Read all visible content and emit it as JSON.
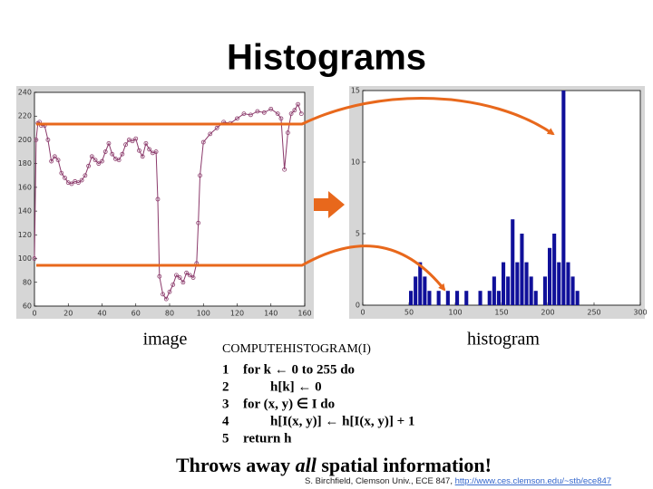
{
  "title": "Histograms",
  "captions": {
    "left": "image",
    "right": "histogram"
  },
  "algorithm": {
    "name": "COMPUTEHISTOGRAM(I)",
    "lines": [
      {
        "number": "1",
        "text": "for k ← 0 to 255 do"
      },
      {
        "number": "2",
        "text": "h[k] ← 0"
      },
      {
        "number": "3",
        "text": "for (x, y) ∈ I do"
      },
      {
        "number": "4",
        "text": "h[I(x, y)] ← h[I(x, y)] + 1"
      },
      {
        "number": "5",
        "text": "return h"
      }
    ]
  },
  "footer": {
    "before": "Throws away ",
    "emphasis": "all",
    "after": " spatial information!"
  },
  "credit": {
    "text": "S. Birchfield, Clemson Univ., ECE 847, ",
    "link": "http://www.ces.clemson.edu/~stb/ece847"
  },
  "chart_data": [
    {
      "type": "line",
      "color": "#8b3a6b",
      "x": [
        0,
        1,
        2,
        3,
        4,
        6,
        8,
        10,
        12,
        14,
        16,
        18,
        20,
        22,
        24,
        26,
        28,
        30,
        32,
        34,
        36,
        38,
        40,
        42,
        44,
        46,
        48,
        50,
        52,
        54,
        56,
        58,
        60,
        62,
        64,
        66,
        68,
        70,
        72,
        73,
        74,
        76,
        78,
        80,
        82,
        84,
        86,
        88,
        90,
        92,
        94,
        96,
        97,
        98,
        100,
        104,
        108,
        112,
        116,
        120,
        124,
        128,
        132,
        136,
        140,
        144,
        146,
        148,
        150,
        152,
        154,
        156,
        158
      ],
      "values": [
        100,
        200,
        214,
        215,
        212,
        212,
        200,
        182,
        186,
        183,
        172,
        168,
        164,
        163,
        165,
        164,
        166,
        170,
        178,
        186,
        183,
        180,
        182,
        190,
        197,
        188,
        184,
        183,
        188,
        196,
        200,
        199,
        201,
        191,
        186,
        197,
        192,
        189,
        190,
        150,
        85,
        70,
        66,
        72,
        78,
        86,
        84,
        80,
        88,
        86,
        84,
        96,
        130,
        170,
        198,
        205,
        210,
        215,
        214,
        218,
        222,
        221,
        224,
        223,
        226,
        222,
        218,
        175,
        206,
        222,
        225,
        230,
        222
      ],
      "xlim": [
        0,
        160
      ],
      "ylim": [
        60,
        240
      ],
      "xticks": [
        0,
        20,
        40,
        60,
        80,
        100,
        120,
        140,
        160
      ],
      "yticks": [
        60,
        80,
        100,
        120,
        140,
        160,
        180,
        200,
        220,
        240
      ]
    },
    {
      "type": "histogram",
      "color": "#10109a",
      "bins": [
        0,
        5,
        10,
        15,
        20,
        25,
        30,
        35,
        40,
        45,
        50,
        55,
        60,
        65,
        70,
        75,
        80,
        85,
        90,
        95,
        100,
        105,
        110,
        115,
        120,
        125,
        130,
        135,
        140,
        145,
        150,
        155,
        160,
        165,
        170,
        175,
        180,
        185,
        190,
        195,
        200,
        205,
        210,
        215,
        220,
        225,
        230,
        235,
        240
      ],
      "values": [
        0,
        0,
        0,
        0,
        0,
        0,
        0,
        0,
        0,
        0,
        1,
        2,
        3,
        2,
        1,
        0,
        1,
        0,
        1,
        0,
        1,
        0,
        1,
        0,
        0,
        1,
        0,
        1,
        2,
        1,
        3,
        2,
        6,
        3,
        5,
        3,
        2,
        1,
        0,
        2,
        4,
        5,
        3,
        15,
        3,
        2,
        1,
        0
      ],
      "xlim": [
        0,
        300
      ],
      "ylim": [
        0,
        15
      ],
      "xticks": [
        0,
        50,
        100,
        150,
        200,
        250,
        300
      ],
      "yticks": [
        0,
        5,
        10,
        15
      ]
    }
  ]
}
